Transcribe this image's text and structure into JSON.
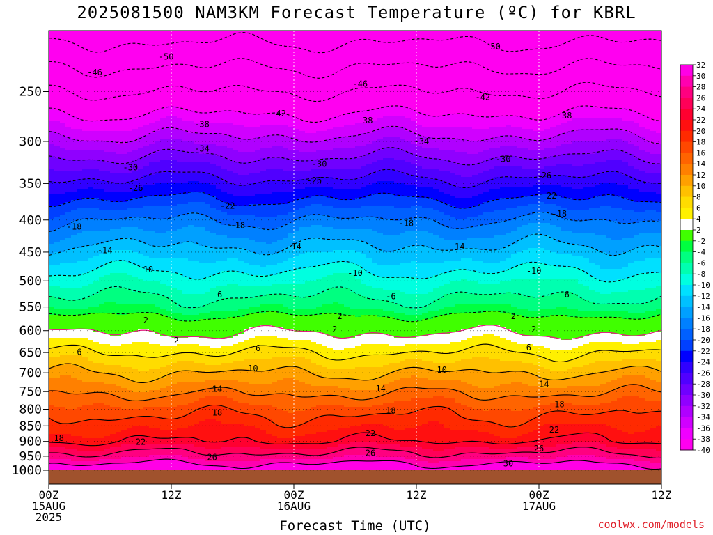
{
  "title": "2025081500 NAM3KM Forecast Temperature (ºC) for KBRL",
  "credit": "coolwx.com/models",
  "chart_data": {
    "type": "heatmap",
    "title": "2025081500 NAM3KM Forecast Temperature (ºC) for KBRL",
    "xlabel": "Forecast Time (UTC)",
    "ylabel": "",
    "x_hours": [
      0,
      60
    ],
    "y_pressure_range": [
      1000,
      200
    ],
    "y_ticks": [
      250,
      300,
      350,
      400,
      450,
      500,
      550,
      600,
      650,
      700,
      750,
      800,
      850,
      900,
      950,
      1000
    ],
    "x_ticks": [
      {
        "hour": 0,
        "lines": [
          "00Z",
          "15AUG",
          "2025"
        ]
      },
      {
        "hour": 12,
        "lines": [
          "12Z"
        ]
      },
      {
        "hour": 24,
        "lines": [
          "00Z",
          "16AUG"
        ]
      },
      {
        "hour": 36,
        "lines": [
          "12Z"
        ]
      },
      {
        "hour": 48,
        "lines": [
          "00Z",
          "17AUG"
        ]
      },
      {
        "hour": 60,
        "lines": [
          "12Z"
        ]
      }
    ],
    "vertical_profile": [
      {
        "p": 1000,
        "t": 32
      },
      {
        "p": 975,
        "t": 30
      },
      {
        "p": 950,
        "t": 27
      },
      {
        "p": 925,
        "t": 25
      },
      {
        "p": 900,
        "t": 22
      },
      {
        "p": 850,
        "t": 19.5
      },
      {
        "p": 800,
        "t": 17
      },
      {
        "p": 750,
        "t": 13.5
      },
      {
        "p": 700,
        "t": 10
      },
      {
        "p": 650,
        "t": 6
      },
      {
        "p": 600,
        "t": 1.5
      },
      {
        "p": 575,
        "t": -1
      },
      {
        "p": 550,
        "t": -4.5
      },
      {
        "p": 500,
        "t": -8.5
      },
      {
        "p": 450,
        "t": -13
      },
      {
        "p": 400,
        "t": -18
      },
      {
        "p": 350,
        "t": -25
      },
      {
        "p": 300,
        "t": -33
      },
      {
        "p": 250,
        "t": -42
      },
      {
        "p": 200,
        "t": -52
      }
    ],
    "contour_labels": [
      {
        "text": "-50",
        "h": 11.5,
        "p": 220
      },
      {
        "text": "-50",
        "h": 43.5,
        "p": 212
      },
      {
        "text": "-46",
        "h": 4.5,
        "p": 233
      },
      {
        "text": "-46",
        "h": 30.5,
        "p": 243
      },
      {
        "text": "-42",
        "h": 42.5,
        "p": 255
      },
      {
        "text": "-42",
        "h": 22.5,
        "p": 271
      },
      {
        "text": "-38",
        "h": 50.5,
        "p": 273
      },
      {
        "text": "-38",
        "h": 15,
        "p": 282
      },
      {
        "text": "-38",
        "h": 31,
        "p": 278
      },
      {
        "text": "-34",
        "h": 15,
        "p": 308
      },
      {
        "text": "-34",
        "h": 36.5,
        "p": 300
      },
      {
        "text": "-30",
        "h": 8,
        "p": 330
      },
      {
        "text": "-30",
        "h": 26.5,
        "p": 326
      },
      {
        "text": "-30",
        "h": 44.5,
        "p": 320
      },
      {
        "text": "-26",
        "h": 8.5,
        "p": 356
      },
      {
        "text": "-26",
        "h": 26,
        "p": 346
      },
      {
        "text": "-26",
        "h": 48.5,
        "p": 340
      },
      {
        "text": "-22",
        "h": 17.5,
        "p": 380
      },
      {
        "text": "-22",
        "h": 49,
        "p": 366
      },
      {
        "text": "-18",
        "h": 2.5,
        "p": 410
      },
      {
        "text": "-18",
        "h": 18.5,
        "p": 408
      },
      {
        "text": "-18",
        "h": 35,
        "p": 405
      },
      {
        "text": "-18",
        "h": 50,
        "p": 391
      },
      {
        "text": "-14",
        "h": 5.5,
        "p": 447
      },
      {
        "text": "-14",
        "h": 24,
        "p": 441
      },
      {
        "text": "-14",
        "h": 40,
        "p": 441
      },
      {
        "text": "-10",
        "h": 9.5,
        "p": 480
      },
      {
        "text": "-10",
        "h": 30,
        "p": 486
      },
      {
        "text": "-10",
        "h": 47.5,
        "p": 482
      },
      {
        "text": "-6",
        "h": 16.5,
        "p": 526
      },
      {
        "text": "-6",
        "h": 33.5,
        "p": 529
      },
      {
        "text": "-6",
        "h": 50.5,
        "p": 526
      },
      {
        "text": "2",
        "h": 9.5,
        "p": 578
      },
      {
        "text": "2",
        "h": 28.5,
        "p": 569
      },
      {
        "text": "2",
        "h": 28,
        "p": 597
      },
      {
        "text": "2",
        "h": 45.5,
        "p": 569
      },
      {
        "text": "2",
        "h": 47.5,
        "p": 597
      },
      {
        "text": "2",
        "h": 12.5,
        "p": 622
      },
      {
        "text": "6",
        "h": 3,
        "p": 649
      },
      {
        "text": "6",
        "h": 20.5,
        "p": 640
      },
      {
        "text": "6",
        "h": 47,
        "p": 638
      },
      {
        "text": "10",
        "h": 20,
        "p": 689
      },
      {
        "text": "10",
        "h": 38.5,
        "p": 693
      },
      {
        "text": "14",
        "h": 16.5,
        "p": 743
      },
      {
        "text": "14",
        "h": 32.5,
        "p": 742
      },
      {
        "text": "14",
        "h": 48.5,
        "p": 730
      },
      {
        "text": "18",
        "h": 16.5,
        "p": 810
      },
      {
        "text": "18",
        "h": 33.5,
        "p": 804
      },
      {
        "text": "18",
        "h": 50,
        "p": 786
      },
      {
        "text": "18",
        "h": 1,
        "p": 889
      },
      {
        "text": "22",
        "h": 9,
        "p": 902
      },
      {
        "text": "22",
        "h": 31.5,
        "p": 874
      },
      {
        "text": "22",
        "h": 49.5,
        "p": 862
      },
      {
        "text": "26",
        "h": 16,
        "p": 954
      },
      {
        "text": "26",
        "h": 31.5,
        "p": 940
      },
      {
        "text": "26",
        "h": 48,
        "p": 924
      },
      {
        "text": "30",
        "h": 45,
        "p": 976
      }
    ],
    "colorbar": {
      "labels": [
        "32",
        "30",
        "28",
        "26",
        "24",
        "22",
        "20",
        "18",
        "16",
        "14",
        "12",
        "10",
        "8",
        "6",
        "4",
        "2",
        "-2",
        "-4",
        "-6",
        "-8",
        "-10",
        "-12",
        "-14",
        "-16",
        "-18",
        "-20",
        "-22",
        "-24",
        "-26",
        "-28",
        "-30",
        "-32",
        "-34",
        "-36",
        "-38",
        "-40"
      ],
      "colors": [
        "#ff00e6",
        "#ff00b0",
        "#ff0080",
        "#ff0058",
        "#ff0030",
        "#ff1010",
        "#ff2a00",
        "#ff4800",
        "#ff6400",
        "#ff8000",
        "#ffa000",
        "#ffc000",
        "#ffdc00",
        "#fff000",
        "#ffffff",
        "#40ff00",
        "#00ff40",
        "#00ff80",
        "#00ffb0",
        "#00ffe0",
        "#00e0ff",
        "#00c0ff",
        "#00a0ff",
        "#0080ff",
        "#0060ff",
        "#0040ff",
        "#0000ff",
        "#3000ff",
        "#5000ff",
        "#7000ff",
        "#9000ff",
        "#b000ff",
        "#d000ff",
        "#f000ff",
        "#ff00f0"
      ]
    }
  }
}
